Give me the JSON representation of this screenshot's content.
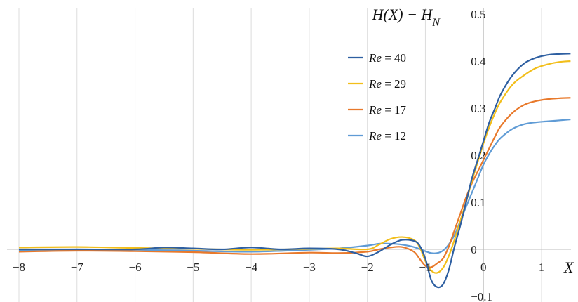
{
  "chart_data": {
    "type": "line",
    "xlabel": "X",
    "ylabel": "H(X) − H_N",
    "xlim": [
      -8,
      1.5
    ],
    "ylim": [
      -0.1,
      0.5
    ],
    "x_ticks": [
      -8,
      -7,
      -6,
      -5,
      -4,
      -3,
      -2,
      -1,
      0,
      1
    ],
    "x_tick_labels": [
      "−8",
      "−7",
      "−6",
      "−5",
      "−4",
      "−3",
      "−2",
      "−1",
      "0",
      "1"
    ],
    "y_ticks": [
      -0.1,
      0,
      0.1,
      0.2,
      0.3,
      0.4,
      0.5
    ],
    "y_tick_labels": [
      "−0.1",
      "0",
      "0.1",
      "0.2",
      "0.3",
      "0.4",
      "0.5"
    ],
    "grid": "vertical",
    "legend_position": "top-right",
    "series": [
      {
        "name": "Re = 40",
        "color": "#2e5fa1",
        "x": [
          -8,
          -7,
          -6,
          -5.5,
          -5,
          -4.5,
          -4,
          -3.5,
          -3,
          -2.5,
          -2.2,
          -2,
          -1.8,
          -1.6,
          -1.4,
          -1.2,
          -1.1,
          -1,
          -0.9,
          -0.8,
          -0.7,
          -0.6,
          -0.5,
          -0.4,
          -0.3,
          -0.2,
          -0.1,
          0,
          0.1,
          0.2,
          0.3,
          0.5,
          0.7,
          0.9,
          1.1,
          1.3,
          1.5
        ],
        "y": [
          0.0,
          0.0,
          0.0,
          0.004,
          0.002,
          0.0,
          0.004,
          0.0,
          0.002,
          0.0,
          -0.008,
          -0.015,
          -0.005,
          0.01,
          0.02,
          0.018,
          0.008,
          -0.02,
          -0.065,
          -0.08,
          -0.075,
          -0.045,
          0.005,
          0.05,
          0.1,
          0.15,
          0.19,
          0.23,
          0.27,
          0.3,
          0.33,
          0.37,
          0.395,
          0.407,
          0.413,
          0.415,
          0.416
        ]
      },
      {
        "name": "Re = 29",
        "color": "#f2be1a",
        "x": [
          -8,
          -7,
          -6,
          -5,
          -4,
          -3,
          -2.5,
          -2,
          -1.8,
          -1.6,
          -1.4,
          -1.2,
          -1.1,
          -1,
          -0.9,
          -0.8,
          -0.7,
          -0.6,
          -0.5,
          -0.4,
          -0.3,
          -0.2,
          -0.1,
          0,
          0.1,
          0.2,
          0.3,
          0.5,
          0.7,
          0.9,
          1.1,
          1.3,
          1.5
        ],
        "y": [
          0.004,
          0.005,
          0.003,
          0.001,
          -0.001,
          0.001,
          0.002,
          0.0,
          0.01,
          0.022,
          0.026,
          0.02,
          0.005,
          -0.025,
          -0.045,
          -0.05,
          -0.04,
          -0.015,
          0.02,
          0.06,
          0.1,
          0.145,
          0.185,
          0.225,
          0.26,
          0.29,
          0.315,
          0.35,
          0.37,
          0.385,
          0.393,
          0.398,
          0.4
        ]
      },
      {
        "name": "Re = 17",
        "color": "#e8792b",
        "x": [
          -8,
          -7,
          -6,
          -5,
          -4,
          -3,
          -2.5,
          -2,
          -1.8,
          -1.6,
          -1.4,
          -1.2,
          -1.1,
          -1,
          -0.9,
          -0.8,
          -0.7,
          -0.6,
          -0.5,
          -0.4,
          -0.3,
          -0.2,
          -0.1,
          0,
          0.1,
          0.2,
          0.3,
          0.5,
          0.7,
          0.9,
          1.1,
          1.3,
          1.5
        ],
        "y": [
          -0.005,
          -0.003,
          -0.004,
          -0.006,
          -0.01,
          -0.007,
          -0.008,
          -0.005,
          0.0,
          0.004,
          0.005,
          -0.005,
          -0.02,
          -0.035,
          -0.038,
          -0.03,
          -0.02,
          0.005,
          0.04,
          0.075,
          0.11,
          0.14,
          0.165,
          0.19,
          0.215,
          0.24,
          0.262,
          0.29,
          0.307,
          0.315,
          0.319,
          0.321,
          0.322
        ]
      },
      {
        "name": "Re = 12",
        "color": "#5f9bd5",
        "x": [
          -8,
          -7,
          -6,
          -5,
          -4,
          -3,
          -2.5,
          -2,
          -1.8,
          -1.6,
          -1.4,
          -1.2,
          -1,
          -0.9,
          -0.8,
          -0.7,
          -0.6,
          -0.5,
          -0.4,
          -0.3,
          -0.2,
          -0.1,
          0,
          0.1,
          0.2,
          0.3,
          0.5,
          0.7,
          0.9,
          1.1,
          1.3,
          1.5
        ],
        "y": [
          -0.002,
          0.0,
          -0.001,
          -0.003,
          -0.005,
          -0.001,
          0.002,
          0.008,
          0.012,
          0.012,
          0.01,
          0.005,
          -0.004,
          -0.008,
          -0.008,
          -0.003,
          0.01,
          0.03,
          0.06,
          0.09,
          0.12,
          0.15,
          0.18,
          0.203,
          0.222,
          0.237,
          0.256,
          0.266,
          0.27,
          0.272,
          0.274,
          0.276
        ]
      }
    ]
  }
}
